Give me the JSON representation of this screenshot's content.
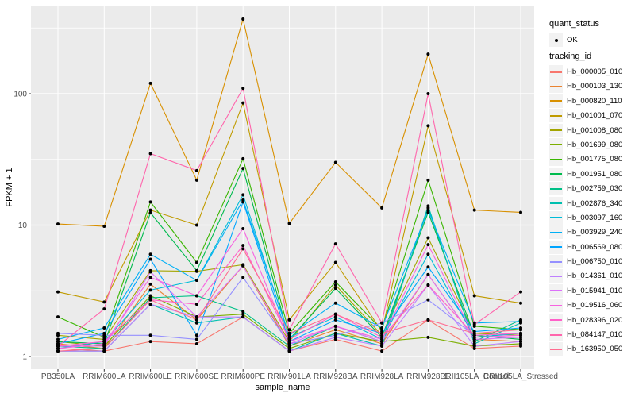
{
  "figure": {
    "background": "#FFFFFF",
    "panel_background": "#EBEBEB",
    "gridline_color": "#FFFFFF",
    "point_color": "#000000",
    "axis_text_color": "#4D4D4D",
    "axis_title_color": "#000000",
    "tick_color": "#333333",
    "legend_key_background": "#F2F2F2"
  },
  "legend": {
    "quant_status_title": "quant_status",
    "ok_label": "OK",
    "tracking_title": "tracking_id"
  },
  "chart_data": {
    "type": "line",
    "title": "",
    "xlabel": "sample_name",
    "ylabel": "FPKM + 1",
    "y_scale": "log10",
    "y_ticks": [
      1,
      10,
      100
    ],
    "y_tick_labels": [
      "1",
      "10",
      "100"
    ],
    "y_minor_ticks": [
      3.1623,
      31.623,
      316.23
    ],
    "ylim": [
      0.85,
      465
    ],
    "grid": true,
    "legend_position": "right",
    "point_symbol": "black-point",
    "categories": [
      "PB350LA",
      "RRIM600LA",
      "RRIM600LE",
      "RRIM600SE",
      "RRIM600PE",
      "RRIM901LA",
      "RRIM928BA",
      "RRIM928LA",
      "RRIM928LE",
      "RRII105LA_Control",
      "RRII105LA_Stressed"
    ],
    "series": [
      {
        "name": "Hb_000005_010",
        "color": "#F8766D",
        "values": [
          1.15,
          1.1,
          1.3,
          1.25,
          2.0,
          1.1,
          1.35,
          1.1,
          1.9,
          1.15,
          1.2
        ]
      },
      {
        "name": "Hb_000103_130",
        "color": "#EA8331",
        "values": [
          1.25,
          1.15,
          3.55,
          1.9,
          4.9,
          1.2,
          1.6,
          1.25,
          4.2,
          1.35,
          1.3
        ]
      },
      {
        "name": "Hb_000820_110",
        "color": "#D89000",
        "values": [
          10.2,
          9.8,
          120,
          22,
          370,
          10.3,
          30,
          13.5,
          200,
          13,
          12.5
        ]
      },
      {
        "name": "Hb_001001_070",
        "color": "#C09B00",
        "values": [
          3.1,
          2.6,
          13,
          10,
          85,
          1.9,
          5.2,
          1.55,
          57,
          2.9,
          2.55
        ]
      },
      {
        "name": "Hb_001008_080",
        "color": "#A3A500",
        "values": [
          1.45,
          1.35,
          4.5,
          4.45,
          5.0,
          1.3,
          3.5,
          1.45,
          8.0,
          1.5,
          1.45
        ]
      },
      {
        "name": "Hb_001699_080",
        "color": "#7CAE00",
        "values": [
          1.3,
          1.2,
          2.9,
          2.0,
          2.1,
          1.15,
          1.5,
          1.3,
          1.4,
          1.2,
          1.25
        ]
      },
      {
        "name": "Hb_001775_080",
        "color": "#39B600",
        "values": [
          2.0,
          1.4,
          15,
          5.2,
          32,
          1.5,
          3.7,
          1.6,
          22,
          1.7,
          1.6
        ]
      },
      {
        "name": "Hb_001951_080",
        "color": "#00BB4E",
        "values": [
          1.3,
          1.25,
          12.4,
          4.5,
          27,
          1.35,
          3.3,
          1.4,
          12.5,
          1.45,
          1.35
        ]
      },
      {
        "name": "Hb_002759_030",
        "color": "#00C087",
        "values": [
          1.2,
          1.15,
          2.8,
          2.9,
          2.2,
          1.2,
          1.7,
          1.3,
          13.5,
          1.3,
          1.9
        ]
      },
      {
        "name": "Hb_002876_340",
        "color": "#00C0AF",
        "values": [
          1.1,
          1.1,
          2.5,
          1.8,
          2.0,
          1.1,
          1.5,
          1.2,
          14,
          1.25,
          1.8
        ]
      },
      {
        "name": "Hb_003097_160",
        "color": "#00BCD8",
        "values": [
          1.15,
          1.3,
          3.2,
          3.8,
          17,
          1.4,
          2.0,
          1.35,
          6.0,
          1.4,
          1.5
        ]
      },
      {
        "name": "Hb_003929_240",
        "color": "#00B0F6",
        "values": [
          1.35,
          1.65,
          6.0,
          3.8,
          15.5,
          1.45,
          2.55,
          1.65,
          13,
          1.8,
          1.85
        ]
      },
      {
        "name": "Hb_006569_080",
        "color": "#00A5FF",
        "values": [
          1.25,
          1.5,
          5.5,
          1.45,
          15,
          1.3,
          1.9,
          1.5,
          4.8,
          1.55,
          1.65
        ]
      },
      {
        "name": "Hb_006750_010",
        "color": "#9590FF",
        "values": [
          1.5,
          1.45,
          1.45,
          1.35,
          4.0,
          1.25,
          1.45,
          1.8,
          2.7,
          1.45,
          1.5
        ]
      },
      {
        "name": "Hb_014361_010",
        "color": "#BF80FF",
        "values": [
          1.1,
          1.1,
          2.5,
          2.0,
          2.0,
          1.1,
          1.4,
          1.2,
          3.5,
          1.2,
          1.3
        ]
      },
      {
        "name": "Hb_015941_010",
        "color": "#DC71FA",
        "values": [
          1.2,
          1.2,
          4.4,
          2.0,
          4.9,
          1.25,
          1.7,
          1.3,
          4.2,
          1.35,
          1.4
        ]
      },
      {
        "name": "Hb_019516_060",
        "color": "#F763E0",
        "values": [
          1.15,
          1.25,
          4.0,
          2.9,
          9.4,
          1.3,
          1.7,
          1.35,
          7.1,
          1.4,
          1.45
        ]
      },
      {
        "name": "Hb_028396_020",
        "color": "#FF61C9",
        "values": [
          1.2,
          1.3,
          2.7,
          2.5,
          7.0,
          1.35,
          2.1,
          1.4,
          3.5,
          1.45,
          1.5
        ]
      },
      {
        "name": "Hb_084147_010",
        "color": "#FF65AC",
        "values": [
          1.2,
          2.3,
          35,
          26,
          110,
          1.6,
          7.2,
          1.8,
          100,
          1.75,
          3.1
        ]
      },
      {
        "name": "Hb_163950_050",
        "color": "#FF6C90",
        "values": [
          1.1,
          1.15,
          2.7,
          1.9,
          6.6,
          1.5,
          2.1,
          1.5,
          1.9,
          1.5,
          1.6
        ]
      }
    ]
  }
}
